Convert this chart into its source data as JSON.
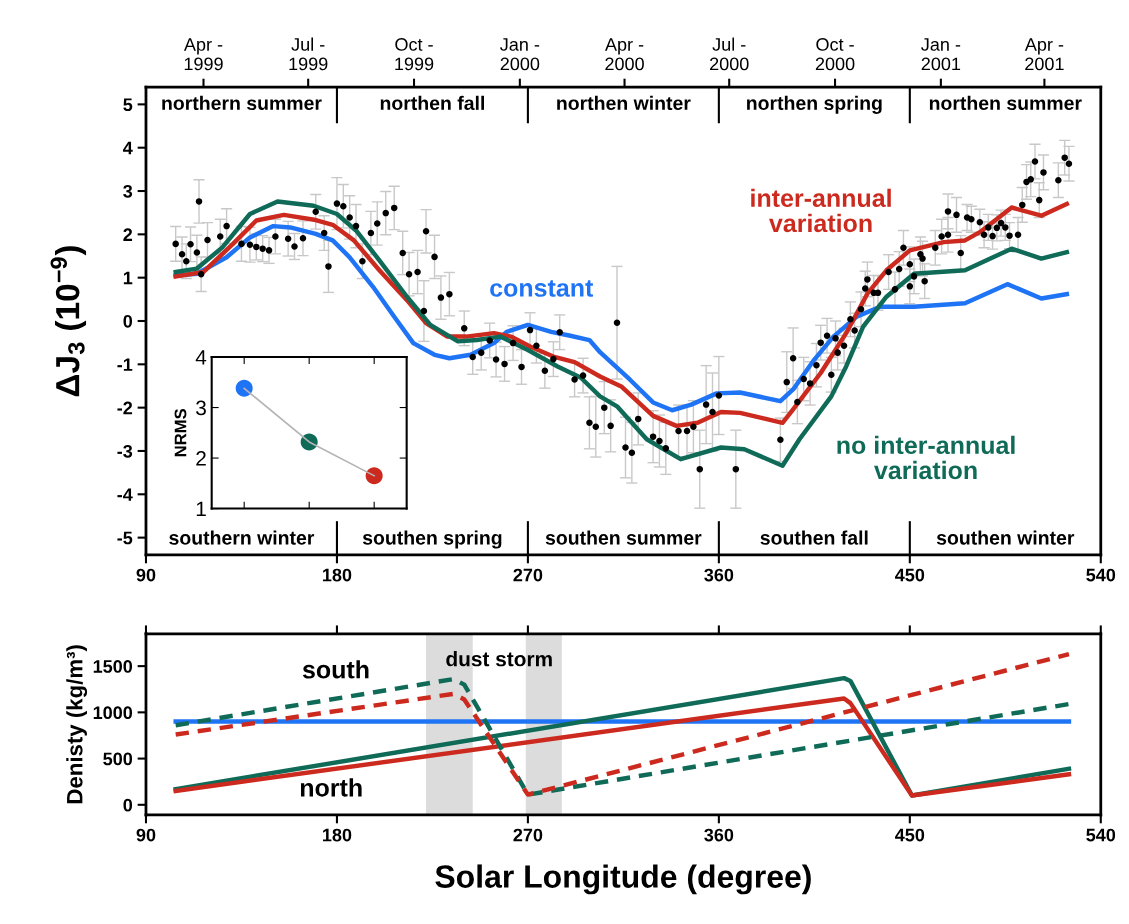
{
  "chart_data": [
    {
      "type": "line",
      "ylabel": "ΔJ$_{3}$ (10$^{−9}$)",
      "xlim": [
        90,
        540
      ],
      "xticks": [
        90,
        180,
        270,
        360,
        450,
        540
      ],
      "ylim": [
        -5.4,
        5.4
      ],
      "yticks": [
        -5,
        -4,
        -3,
        -2,
        -1,
        0,
        1,
        2,
        3,
        4,
        5
      ],
      "x2lim": [
        "1999-02-10",
        "2001-05-20"
      ],
      "x2ticks": [
        {
          "value": "1999-04-01",
          "label": "Apr -\n1999"
        },
        {
          "value": "1999-07-01",
          "label": "Jul -\n1999"
        },
        {
          "value": "1999-10-01",
          "label": "Oct -\n1999"
        },
        {
          "value": "2000-01-01",
          "label": "Jan -\n2000"
        },
        {
          "value": "2000-04-01",
          "label": "Apr -\n2000"
        },
        {
          "value": "2000-07-01",
          "label": "Jul -\n2000"
        },
        {
          "value": "2000-10-01",
          "label": "Oct -\n2000"
        },
        {
          "value": "2001-01-01",
          "label": "Jan -\n2001"
        },
        {
          "value": "2001-04-01",
          "label": "Apr -\n2001"
        }
      ],
      "grid": false,
      "legend": false,
      "annotations": [
        "northern summer",
        "northen fall",
        "northen winter",
        "northen spring",
        "northen summer",
        "southern winter",
        "southen spring",
        "southen summer",
        "southen fall",
        "southen winter"
      ],
      "series": [
        {
          "type": "scatter",
          "color": "#000000",
          "marker": "circle",
          "x": [
            104,
            107,
            109,
            111,
            114,
            115,
            116,
            119,
            125,
            128,
            135,
            139,
            142,
            145,
            148,
            151,
            157,
            160,
            164,
            170,
            174,
            176,
            180,
            183,
            186,
            189,
            192,
            196,
            199,
            203,
            207,
            211,
            214,
            218,
            221,
            222,
            226,
            229,
            233,
            240,
            244,
            248,
            252,
            255,
            259,
            263,
            267,
            271,
            274,
            278,
            282,
            285,
            292,
            296,
            299,
            302,
            306,
            309,
            312,
            316,
            319,
            322,
            329,
            332,
            335,
            341,
            345,
            348,
            351,
            354,
            357,
            360,
            368,
            389,
            392,
            395,
            397,
            400,
            403,
            406,
            408,
            411,
            413,
            415,
            416,
            419,
            422,
            424,
            427,
            429,
            430,
            433,
            435,
            440,
            443,
            445,
            447,
            450,
            450,
            452,
            455,
            456,
            457,
            462,
            465,
            468,
            468,
            472,
            474,
            477,
            479,
            483,
            485,
            487,
            489,
            491,
            493,
            495,
            497,
            501,
            503,
            505,
            507,
            509,
            511,
            513,
            520,
            523,
            525
          ],
          "values": [
            1.78,
            1.54,
            1.38,
            1.77,
            1.58,
            2.76,
            1.08,
            1.87,
            1.95,
            2.19,
            1.78,
            1.76,
            1.71,
            1.67,
            1.63,
            1.95,
            1.9,
            1.72,
            1.91,
            2.52,
            2.03,
            1.26,
            2.71,
            2.65,
            2.39,
            2.19,
            1.38,
            2.03,
            2.25,
            2.49,
            2.61,
            1.57,
            1.08,
            1.13,
            0.23,
            2.07,
            1.48,
            0.54,
            0.62,
            -0.17,
            -0.83,
            -0.73,
            -0.45,
            -0.89,
            -0.99,
            -0.51,
            -1.06,
            -0.21,
            -0.57,
            -1.15,
            -0.88,
            -0.26,
            -1.35,
            -1.26,
            -2.35,
            -2.44,
            -2.0,
            -2.42,
            -0.04,
            -2.92,
            -3.04,
            -2.26,
            -2.67,
            -2.77,
            -2.94,
            -2.54,
            -2.54,
            -2.44,
            -3.42,
            -1.93,
            -2.1,
            -1.72,
            -3.42,
            -2.74,
            -1.41,
            -0.86,
            -1.87,
            -1.34,
            -1.44,
            -1.02,
            -0.5,
            -0.34,
            -1.24,
            -0.4,
            -0.73,
            -0.57,
            0.04,
            -0.22,
            0.27,
            0.75,
            0.96,
            0.65,
            0.65,
            1.13,
            0.73,
            1.2,
            1.69,
            1.31,
            0.8,
            1.03,
            1.54,
            1.44,
            0.92,
            1.69,
            1.95,
            1.99,
            2.53,
            2.45,
            1.57,
            2.39,
            2.35,
            2.28,
            1.99,
            2.16,
            1.96,
            2.15,
            2.26,
            2.16,
            1.97,
            1.99,
            2.68,
            3.21,
            3.27,
            3.68,
            2.79,
            3.43,
            3.25,
            3.77,
            3.63
          ],
          "errors": [
            0.4,
            0.4,
            0.4,
            0.4,
            0.4,
            0.5,
            0.4,
            0.4,
            0.4,
            0.4,
            0.4,
            0.4,
            0.3,
            0.3,
            0.3,
            0.4,
            0.4,
            0.3,
            0.4,
            0.4,
            0.4,
            0.6,
            0.6,
            0.5,
            0.5,
            0.5,
            0.4,
            0.5,
            0.5,
            0.5,
            0.5,
            0.5,
            0.5,
            0.5,
            0.7,
            0.5,
            0.5,
            0.5,
            0.5,
            0.4,
            0.4,
            0.4,
            0.4,
            0.4,
            0.4,
            0.4,
            0.4,
            0.4,
            0.4,
            0.4,
            0.4,
            0.4,
            0.4,
            0.4,
            0.6,
            0.7,
            0.6,
            0.6,
            1.3,
            0.7,
            0.7,
            0.6,
            0.6,
            0.6,
            0.6,
            0.6,
            0.6,
            0.6,
            0.9,
            0.9,
            0.9,
            0.9,
            0.9,
            0.5,
            0.7,
            0.7,
            0.5,
            0.5,
            0.5,
            0.5,
            0.4,
            0.4,
            0.4,
            0.4,
            0.4,
            0.4,
            0.4,
            0.4,
            0.4,
            0.4,
            0.4,
            0.4,
            0.4,
            0.4,
            0.4,
            0.4,
            0.4,
            0.4,
            0.4,
            0.4,
            0.4,
            0.4,
            0.4,
            0.4,
            0.4,
            0.4,
            0.4,
            0.4,
            0.4,
            0.3,
            0.3,
            0.3,
            0.3,
            0.3,
            0.3,
            0.3,
            0.3,
            0.3,
            0.3,
            0.4,
            0.4,
            0.4,
            0.4,
            0.4,
            0.4,
            0.4,
            0.4,
            0.4,
            0.4
          ]
        },
        {
          "name": "constant",
          "color": "#1f74f5",
          "x": [
            104,
            114,
            128,
            139,
            150,
            158,
            170,
            178,
            186,
            197,
            207,
            216,
            226,
            233,
            243,
            254,
            260,
            270,
            281,
            290,
            299,
            304,
            318,
            329,
            338,
            347,
            359,
            370,
            389,
            395,
            405,
            414,
            425,
            436,
            452,
            476,
            496,
            512,
            524
          ],
          "values": [
            1.05,
            1.09,
            1.47,
            1.93,
            2.19,
            2.16,
            2.01,
            1.86,
            1.47,
            0.79,
            0.1,
            -0.51,
            -0.78,
            -0.86,
            -0.78,
            -0.51,
            -0.25,
            -0.09,
            -0.25,
            -0.34,
            -0.44,
            -0.72,
            -1.35,
            -1.88,
            -2.06,
            -1.93,
            -1.67,
            -1.65,
            -1.85,
            -1.58,
            -0.89,
            -0.36,
            0.1,
            0.33,
            0.33,
            0.41,
            0.85,
            0.52,
            0.62
          ]
        },
        {
          "name": "inter-annual variation",
          "color": "#cc2a1e",
          "x": [
            104,
            117,
            131,
            142,
            155,
            170,
            178,
            188,
            200,
            213,
            222,
            232,
            241,
            254,
            262,
            271,
            282,
            292,
            304,
            314,
            329,
            340,
            350,
            361,
            370,
            390,
            395,
            408,
            420,
            430,
            439,
            450,
            466,
            476,
            483,
            498,
            512,
            524
          ],
          "values": [
            1.03,
            1.13,
            1.78,
            2.32,
            2.45,
            2.33,
            2.22,
            1.86,
            1.17,
            0.48,
            -0.05,
            -0.36,
            -0.36,
            -0.28,
            -0.36,
            -0.59,
            -0.82,
            -0.95,
            -1.28,
            -1.51,
            -2.19,
            -2.42,
            -2.35,
            -2.1,
            -2.12,
            -2.35,
            -2.04,
            -1.2,
            -0.28,
            0.63,
            1.17,
            1.63,
            1.82,
            1.86,
            2.05,
            2.62,
            2.43,
            2.7
          ]
        },
        {
          "name": "no inter-annual variation",
          "color": "#0f6b58",
          "x": [
            104,
            114,
            126,
            139,
            152,
            169,
            180,
            189,
            200,
            213,
            224,
            237,
            246,
            257,
            270,
            284,
            295,
            304,
            312,
            326,
            342,
            361,
            372,
            390,
            398,
            413,
            420,
            428,
            439,
            452,
            476,
            498,
            512,
            524
          ],
          "values": [
            1.13,
            1.21,
            1.7,
            2.47,
            2.76,
            2.66,
            2.47,
            2.09,
            1.4,
            0.56,
            -0.09,
            -0.47,
            -0.44,
            -0.36,
            -0.67,
            -1.05,
            -1.31,
            -1.74,
            -1.97,
            -2.73,
            -3.19,
            -2.92,
            -2.96,
            -3.34,
            -2.73,
            -1.74,
            -1.05,
            -0.13,
            0.56,
            1.09,
            1.17,
            1.67,
            1.44,
            1.59
          ]
        }
      ]
    },
    {
      "type": "line",
      "ylabel": "NRMS",
      "categories": [
        null,
        null,
        null
      ],
      "ylim": [
        1,
        4
      ],
      "yticks": [
        1,
        2,
        3,
        4
      ],
      "tick_labels": "y",
      "grid": false,
      "legend": false,
      "series": [
        {
          "color": "#b4b4b4",
          "values": [
            3.38,
            2.32,
            1.65
          ]
        },
        {
          "type": "scatter",
          "marker": "circle",
          "colors": [
            "#1f74f5",
            "#0f6b58",
            "#cc2a1e"
          ],
          "values": [
            3.38,
            2.32,
            1.65
          ]
        }
      ]
    },
    {
      "type": "line",
      "xlabel": "Solar Longitude (degree)",
      "ylabel": "Denisty (kg/m³)",
      "xlim": [
        90,
        540
      ],
      "xticks": [
        90,
        180,
        270,
        360,
        450,
        540
      ],
      "ylim": [
        -110,
        1850
      ],
      "yticks": [
        0,
        500,
        1000,
        1500
      ],
      "grid": false,
      "legend": false,
      "bands": [
        {
          "axis": "x",
          "from": 222,
          "to": 244,
          "color": "#dcdcdc"
        },
        {
          "axis": "x",
          "from": 269,
          "to": 286,
          "color": "#dcdcdc"
        }
      ],
      "annotations": [
        "dust storm",
        "south",
        "north"
      ],
      "series": [
        {
          "color": "#1f74f5",
          "line_style": "solid",
          "x": [
            104,
            525
          ],
          "values": [
            900,
            900
          ]
        },
        {
          "color": "#0f6b58",
          "line_style": "solid",
          "x": [
            104,
            419,
            422,
            451,
            525
          ],
          "values": [
            170,
            1370,
            1340,
            100,
            390
          ]
        },
        {
          "color": "#cc2a1e",
          "line_style": "solid",
          "x": [
            104,
            419,
            422,
            451,
            525
          ],
          "values": [
            150,
            1150,
            1100,
            100,
            330
          ]
        },
        {
          "color": "#0f6b58",
          "line_style": "dashed",
          "x": [
            104,
            235,
            240,
            270,
            525
          ],
          "values": [
            860,
            1360,
            1300,
            110,
            1090
          ]
        },
        {
          "color": "#cc2a1e",
          "line_style": "dashed",
          "x": [
            104,
            235,
            240,
            270,
            525
          ],
          "values": [
            760,
            1200,
            1140,
            110,
            1630
          ]
        }
      ]
    }
  ]
}
